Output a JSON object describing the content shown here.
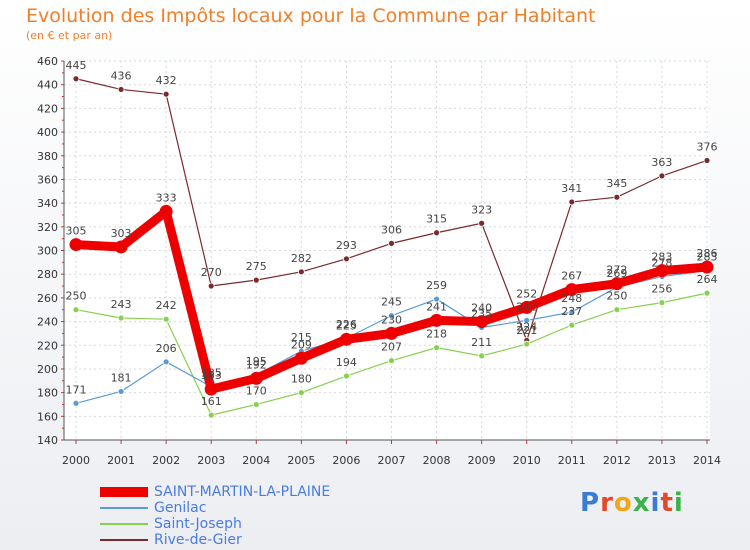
{
  "header": {
    "title": "Evolution des Impôts locaux pour la Commune par Habitant",
    "subtitle": "(en € et par an)"
  },
  "logo": {
    "text": "Proxiti",
    "colors": [
      "#3a7bd5",
      "#e24a2c",
      "#f0a818",
      "#3ab44a",
      "#3a7bd5",
      "#e24a2c",
      "#3ab44a"
    ]
  },
  "chart_data": {
    "type": "line",
    "categories": [
      "2000",
      "2001",
      "2002",
      "2003",
      "2004",
      "2005",
      "2006",
      "2007",
      "2008",
      "2009",
      "2010",
      "2011",
      "2012",
      "2013",
      "2014"
    ],
    "ylim": [
      140,
      460
    ],
    "yticks": [
      140,
      160,
      180,
      200,
      220,
      240,
      260,
      280,
      300,
      320,
      340,
      360,
      380,
      400,
      420,
      440,
      460
    ],
    "series": [
      {
        "name": "SAINT-MARTIN-LA-PLAINE",
        "color": "#ee0000",
        "values": [
          305,
          303,
          333,
          183,
          192,
          209,
          225,
          230,
          241,
          240,
          252,
          267,
          272,
          283,
          286
        ]
      },
      {
        "name": "Genilac",
        "color": "#5a9bd5",
        "values": [
          171,
          181,
          206,
          185,
          195,
          215,
          226,
          245,
          259,
          235,
          241,
          248,
          269,
          278,
          283
        ]
      },
      {
        "name": "Saint-Joseph",
        "color": "#88d050",
        "values": [
          250,
          243,
          242,
          161,
          170,
          180,
          194,
          207,
          218,
          211,
          221,
          237,
          250,
          256,
          264
        ]
      },
      {
        "name": "Rive-de-Gier",
        "color": "#7a2a2a",
        "values": [
          445,
          436,
          432,
          270,
          275,
          282,
          293,
          306,
          315,
          323,
          224,
          341,
          345,
          363,
          376
        ]
      }
    ]
  }
}
